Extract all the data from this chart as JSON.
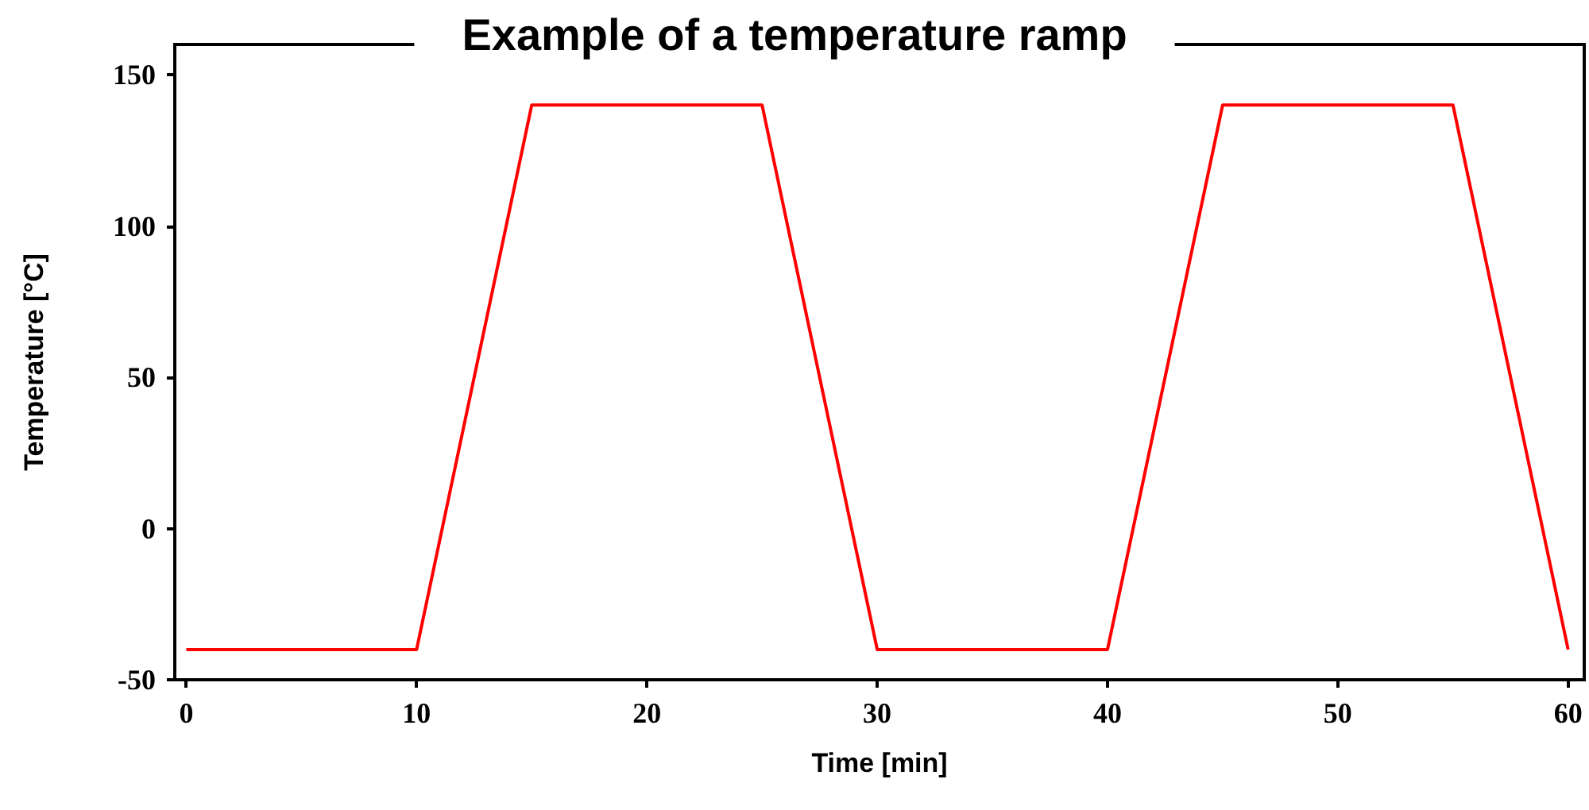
{
  "chart_data": {
    "type": "line",
    "title": "Example of a temperature ramp",
    "xlabel": "Time [min]",
    "ylabel": "Temperature [°C]",
    "x": [
      0,
      10,
      15,
      25,
      30,
      40,
      45,
      55,
      60
    ],
    "series": [
      {
        "color": "#ff0000",
        "values": [
          -40,
          -40,
          140,
          140,
          -40,
          -40,
          140,
          140,
          -40
        ]
      }
    ],
    "xlim": [
      -0.5,
      60.7
    ],
    "xticks": [
      0,
      10,
      20,
      30,
      40,
      50,
      60
    ],
    "ylim": [
      -50,
      160
    ],
    "yticks": [
      -50,
      0,
      50,
      100,
      150
    ],
    "grid": false,
    "marker": "none",
    "line_style": "solid"
  }
}
